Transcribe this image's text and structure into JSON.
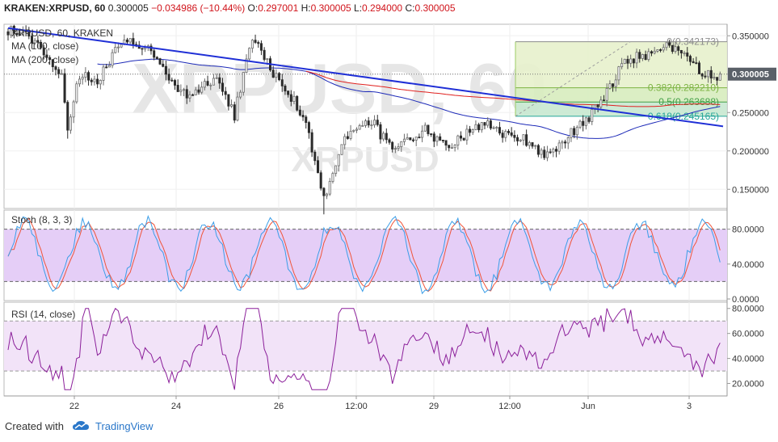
{
  "header": {
    "symbol": "KRAKEN:XRPUSD, 60",
    "last": "0.300005",
    "change": "−0.034986 (−10.44%)",
    "o_label": "O:",
    "o_value": "0.297001",
    "h_label": "H:",
    "h_value": "0.300005",
    "l_label": "L:",
    "l_value": "0.294000",
    "c_label": "C:",
    "c_value": "0.300005"
  },
  "watermark": {
    "big": "XRPUSD, 60",
    "small": "XRPUSD"
  },
  "price_pane": {
    "title": "XRPUSD, 60, KRAKEN",
    "ma1_label": "MA (100, close)",
    "ma2_label": "MA (200, close)",
    "y_ticks": [
      "0.350000",
      "0.300000",
      "0.250000",
      "0.200000",
      "0.150000"
    ],
    "last_price_tag": "0.300005",
    "fib_levels": [
      {
        "label": "0(0.342173)",
        "value": 0.342173,
        "color": "#8c8c8c"
      },
      {
        "label": "0.382(0.282210)",
        "value": 0.28221,
        "color": "#7cb342"
      },
      {
        "label": "0.5(0.263688)",
        "value": 0.263688,
        "color": "#43a047"
      },
      {
        "label": "0.618(0.245165)",
        "value": 0.245165,
        "color": "#26a69a"
      }
    ]
  },
  "stoch_pane": {
    "title": "Stoch (8, 3, 3)",
    "y_ticks": [
      "80.0000",
      "40.0000",
      "0.0000"
    ],
    "upper_band": 80,
    "lower_band": 20
  },
  "rsi_pane": {
    "title": "RSI (14, close)",
    "y_ticks": [
      "80.0000",
      "60.0000",
      "40.0000",
      "20.0000"
    ],
    "upper_band": 70,
    "lower_band": 30
  },
  "x_axis": {
    "labels": [
      "22",
      "24",
      "26",
      "12:00",
      "29",
      "12:00",
      "Jun",
      "3"
    ]
  },
  "footer": {
    "created_with": "Created with",
    "brand": "TradingView"
  },
  "colors": {
    "up": "#6b6b6b",
    "down": "#2b2b2b",
    "trendline": "#1f2fd6",
    "ma100": "#e0201e",
    "ma200": "#1e2bb8",
    "fib_zone": "#e3efc3",
    "stoch_band": "#e5cef7",
    "rsi_band": "#f2e3f8",
    "stoch_k": "#3b9ee8",
    "stoch_d": "#f0553a",
    "rsi": "#8b1f9a"
  },
  "chart_data": {
    "type": "candlestick",
    "symbol": "XRPUSD",
    "interval": "60",
    "price_ylim": [
      0.125,
      0.365
    ],
    "stoch_ylim": [
      0,
      100
    ],
    "rsi_ylim": [
      10,
      85
    ],
    "x_labels": [
      "22",
      "24",
      "26",
      "12:00",
      "29",
      "12:00",
      "Jun",
      "3"
    ],
    "price_path": [
      [
        0,
        0.358
      ],
      [
        12,
        0.335
      ],
      [
        18,
        0.3
      ],
      [
        20,
        0.23
      ],
      [
        24,
        0.292
      ],
      [
        30,
        0.295
      ],
      [
        38,
        0.345
      ],
      [
        48,
        0.33
      ],
      [
        60,
        0.265
      ],
      [
        70,
        0.3
      ],
      [
        76,
        0.245
      ],
      [
        82,
        0.345
      ],
      [
        92,
        0.29
      ],
      [
        100,
        0.235
      ],
      [
        106,
        0.14
      ],
      [
        112,
        0.21
      ],
      [
        122,
        0.24
      ],
      [
        130,
        0.2
      ],
      [
        140,
        0.225
      ],
      [
        150,
        0.21
      ],
      [
        160,
        0.235
      ],
      [
        172,
        0.215
      ],
      [
        180,
        0.195
      ],
      [
        190,
        0.225
      ],
      [
        196,
        0.245
      ],
      [
        206,
        0.315
      ],
      [
        214,
        0.32
      ],
      [
        222,
        0.342
      ],
      [
        232,
        0.3
      ]
    ],
    "trendline": [
      [
        0,
        0.36
      ],
      [
        240,
        0.232
      ]
    ],
    "fib_range": [
      0.342173,
      0.245165
    ],
    "current_price": 0.300005
  }
}
